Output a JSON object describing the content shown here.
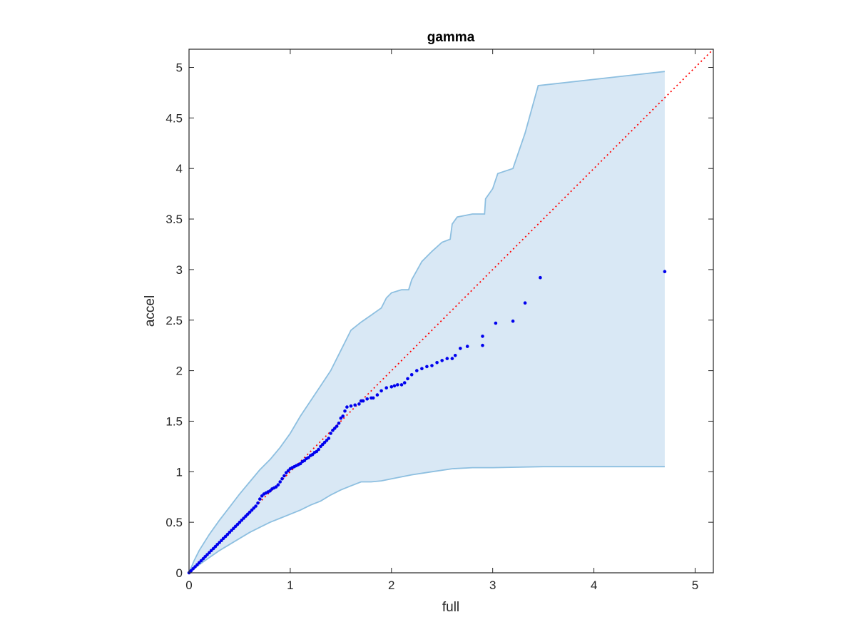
{
  "chart_data": {
    "type": "scatter",
    "title": "gamma",
    "xlabel": "full",
    "ylabel": "accel",
    "xlim": [
      0,
      5.18
    ],
    "ylim": [
      0,
      5.18
    ],
    "xticks": [
      0,
      1,
      2,
      3,
      4,
      5
    ],
    "yticks": [
      0,
      0.5,
      1,
      1.5,
      2,
      2.5,
      3,
      3.5,
      4,
      4.5,
      5
    ],
    "grid": false,
    "colors": {
      "points": "#0000ee",
      "reference_line": "#ff0000",
      "band_fill": "#d9e8f5",
      "band_edge": "#8dbfe0",
      "axes": "#262626"
    },
    "reference_line": {
      "x": [
        0,
        5.18
      ],
      "y": [
        0,
        5.18
      ],
      "style": "dotted"
    },
    "confidence_band": {
      "upper": [
        [
          0,
          0
        ],
        [
          0.05,
          0.12
        ],
        [
          0.1,
          0.22
        ],
        [
          0.2,
          0.38
        ],
        [
          0.3,
          0.52
        ],
        [
          0.4,
          0.65
        ],
        [
          0.5,
          0.78
        ],
        [
          0.6,
          0.9
        ],
        [
          0.7,
          1.02
        ],
        [
          0.8,
          1.12
        ],
        [
          0.9,
          1.24
        ],
        [
          1.0,
          1.38
        ],
        [
          1.1,
          1.55
        ],
        [
          1.2,
          1.7
        ],
        [
          1.3,
          1.85
        ],
        [
          1.4,
          2.0
        ],
        [
          1.5,
          2.2
        ],
        [
          1.55,
          2.3
        ],
        [
          1.6,
          2.4
        ],
        [
          1.7,
          2.48
        ],
        [
          1.8,
          2.55
        ],
        [
          1.9,
          2.62
        ],
        [
          1.95,
          2.72
        ],
        [
          2.0,
          2.77
        ],
        [
          2.1,
          2.8
        ],
        [
          2.17,
          2.8
        ],
        [
          2.2,
          2.9
        ],
        [
          2.3,
          3.08
        ],
        [
          2.4,
          3.18
        ],
        [
          2.5,
          3.27
        ],
        [
          2.58,
          3.3
        ],
        [
          2.6,
          3.45
        ],
        [
          2.65,
          3.52
        ],
        [
          2.8,
          3.55
        ],
        [
          2.92,
          3.55
        ],
        [
          2.93,
          3.7
        ],
        [
          3.0,
          3.8
        ],
        [
          3.05,
          3.95
        ],
        [
          3.2,
          4.0
        ],
        [
          3.32,
          4.35
        ],
        [
          3.45,
          4.82
        ],
        [
          4.7,
          4.96
        ]
      ],
      "lower": [
        [
          0,
          0
        ],
        [
          0.1,
          0.08
        ],
        [
          0.2,
          0.15
        ],
        [
          0.3,
          0.22
        ],
        [
          0.4,
          0.28
        ],
        [
          0.5,
          0.34
        ],
        [
          0.6,
          0.4
        ],
        [
          0.7,
          0.45
        ],
        [
          0.8,
          0.5
        ],
        [
          0.9,
          0.54
        ],
        [
          1.0,
          0.58
        ],
        [
          1.1,
          0.62
        ],
        [
          1.2,
          0.67
        ],
        [
          1.3,
          0.71
        ],
        [
          1.4,
          0.77
        ],
        [
          1.5,
          0.82
        ],
        [
          1.6,
          0.86
        ],
        [
          1.7,
          0.9
        ],
        [
          1.8,
          0.9
        ],
        [
          1.9,
          0.91
        ],
        [
          2.0,
          0.93
        ],
        [
          2.2,
          0.97
        ],
        [
          2.4,
          1.0
        ],
        [
          2.6,
          1.03
        ],
        [
          2.8,
          1.04
        ],
        [
          3.0,
          1.04
        ],
        [
          3.5,
          1.05
        ],
        [
          4.7,
          1.05
        ]
      ]
    },
    "series": [
      {
        "x": [
          0,
          0.02,
          0.04,
          0.06,
          0.08,
          0.1,
          0.12,
          0.14,
          0.16,
          0.18,
          0.2,
          0.22,
          0.24,
          0.26,
          0.28,
          0.3,
          0.32,
          0.34,
          0.36,
          0.38,
          0.4,
          0.42,
          0.44,
          0.46,
          0.48,
          0.5,
          0.52,
          0.54,
          0.56,
          0.58,
          0.6,
          0.62,
          0.64,
          0.66,
          0.68,
          0.7,
          0.72,
          0.74,
          0.76,
          0.78,
          0.8,
          0.82,
          0.84,
          0.86,
          0.88,
          0.9,
          0.92,
          0.94,
          0.96,
          0.98,
          1.0,
          1.02,
          1.04,
          1.06,
          1.08,
          1.1,
          1.12,
          1.14,
          1.16,
          1.18,
          1.2,
          1.22,
          1.24,
          1.26,
          1.28,
          1.3,
          1.32,
          1.34,
          1.36,
          1.38,
          1.4,
          1.42,
          1.44,
          1.46,
          1.48,
          1.5,
          1.52,
          1.54,
          1.56,
          1.6,
          1.64,
          1.68,
          1.7,
          1.72,
          1.76,
          1.8,
          1.82,
          1.86,
          1.9,
          1.95,
          2.0,
          2.03,
          2.06,
          2.1,
          2.13,
          2.16,
          2.2,
          2.25,
          2.3,
          2.35,
          2.4,
          2.45,
          2.5,
          2.55,
          2.6,
          2.63,
          2.68,
          2.75,
          2.9,
          2.9,
          3.03,
          3.2,
          3.32,
          3.47,
          4.7
        ],
        "y": [
          0,
          0.02,
          0.04,
          0.06,
          0.08,
          0.1,
          0.12,
          0.14,
          0.16,
          0.18,
          0.2,
          0.22,
          0.24,
          0.26,
          0.28,
          0.3,
          0.32,
          0.34,
          0.36,
          0.38,
          0.4,
          0.42,
          0.44,
          0.46,
          0.48,
          0.5,
          0.52,
          0.54,
          0.56,
          0.58,
          0.6,
          0.62,
          0.64,
          0.66,
          0.69,
          0.73,
          0.76,
          0.78,
          0.79,
          0.8,
          0.81,
          0.83,
          0.84,
          0.85,
          0.87,
          0.9,
          0.93,
          0.96,
          0.99,
          1.01,
          1.03,
          1.04,
          1.05,
          1.06,
          1.07,
          1.08,
          1.1,
          1.11,
          1.13,
          1.14,
          1.16,
          1.17,
          1.19,
          1.2,
          1.22,
          1.25,
          1.27,
          1.29,
          1.31,
          1.33,
          1.38,
          1.41,
          1.43,
          1.45,
          1.48,
          1.53,
          1.55,
          1.6,
          1.64,
          1.65,
          1.66,
          1.67,
          1.7,
          1.7,
          1.72,
          1.73,
          1.73,
          1.76,
          1.8,
          1.83,
          1.84,
          1.85,
          1.86,
          1.86,
          1.88,
          1.92,
          1.96,
          2.0,
          2.02,
          2.04,
          2.05,
          2.08,
          2.1,
          2.12,
          2.12,
          2.15,
          2.22,
          2.24,
          2.25,
          2.34,
          2.47,
          2.49,
          2.67,
          2.92,
          2.98
        ]
      }
    ]
  }
}
